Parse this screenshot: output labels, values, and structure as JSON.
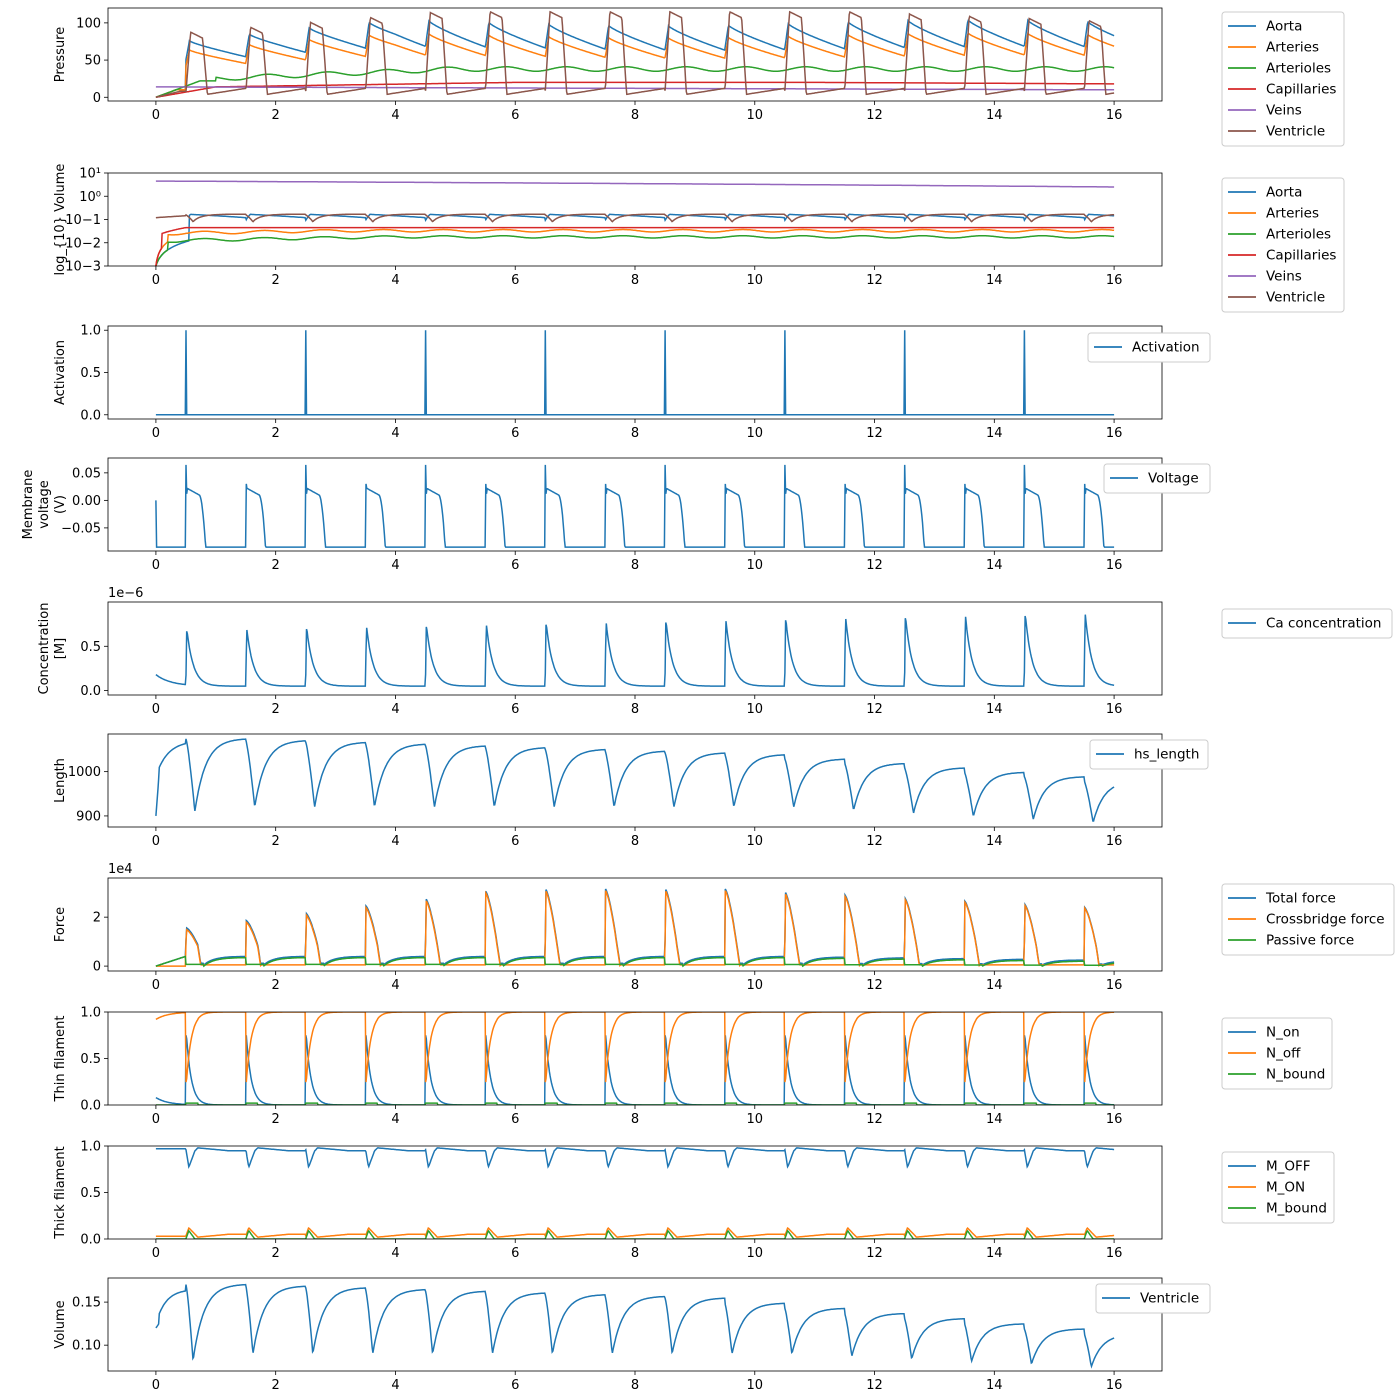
{
  "figure": {
    "panels_count": 10
  },
  "chart_data": [
    {
      "type": "line",
      "ylabel": "Pressure",
      "xlim": [
        -0.8,
        16.8
      ],
      "ylim": [
        -5,
        120
      ],
      "xticks": [
        0,
        2,
        4,
        6,
        8,
        10,
        12,
        14,
        16
      ],
      "yticks": [
        {
          "value": 0,
          "label": "0"
        },
        {
          "value": 50,
          "label": "50"
        },
        {
          "value": 100,
          "label": "100"
        }
      ],
      "legend": {
        "placement": "outside-right-top"
      },
      "series": [
        {
          "name": "Aorta",
          "color": "#1f77b4",
          "shape": "aorta_p",
          "base": 38,
          "amp": 62,
          "trend": 0.4
        },
        {
          "name": "Arteries",
          "color": "#ff7f0e",
          "shape": "aorta_p",
          "base": 33,
          "amp": 50,
          "trend": 0.3
        },
        {
          "name": "Arterioles",
          "color": "#2ca02c",
          "shape": "smooth_p",
          "base": 38,
          "amp": 6
        },
        {
          "name": "Capillaries",
          "color": "#d62728",
          "shape": "rise",
          "base": 20,
          "amp": 0
        },
        {
          "name": "Veins",
          "color": "#9467bd",
          "shape": "flat",
          "base": 12,
          "amp": 0
        },
        {
          "name": "Ventricle",
          "color": "#8c564b",
          "shape": "ventricle_p",
          "base": 8,
          "amp": 105
        }
      ]
    },
    {
      "type": "line",
      "ylabel": "log_{10} Volume",
      "scale": "log",
      "xlim": [
        -0.8,
        16.8
      ],
      "ylim": [
        0.001,
        10
      ],
      "xticks": [
        0,
        2,
        4,
        6,
        8,
        10,
        12,
        14,
        16
      ],
      "yticks": [
        {
          "value": 0.001,
          "label": "10−3"
        },
        {
          "value": 0.01,
          "label": "10−2"
        },
        {
          "value": 0.1,
          "label": "10−1"
        },
        {
          "value": 1,
          "label": "10⁰"
        },
        {
          "value": 10,
          "label": "10¹"
        }
      ],
      "legend": {
        "placement": "outside-right-top"
      },
      "series": [
        {
          "name": "Aorta",
          "color": "#1f77b4",
          "shape": "logvol_aorta"
        },
        {
          "name": "Arteries",
          "color": "#ff7f0e",
          "shape": "logvol_art"
        },
        {
          "name": "Arterioles",
          "color": "#2ca02c",
          "shape": "logvol_arterioles"
        },
        {
          "name": "Capillaries",
          "color": "#d62728",
          "shape": "logvol_cap"
        },
        {
          "name": "Veins",
          "color": "#9467bd",
          "shape": "logvol_veins"
        },
        {
          "name": "Ventricle",
          "color": "#8c564b",
          "shape": "logvol_vent"
        }
      ]
    },
    {
      "type": "line",
      "ylabel": "Activation",
      "xlim": [
        -0.8,
        16.8
      ],
      "ylim": [
        -0.05,
        1.05
      ],
      "xticks": [
        0,
        2,
        4,
        6,
        8,
        10,
        12,
        14,
        16
      ],
      "yticks": [
        {
          "value": 0,
          "label": "0.0"
        },
        {
          "value": 0.5,
          "label": "0.5"
        },
        {
          "value": 1,
          "label": "1.0"
        }
      ],
      "legend": {
        "placement": "upper-right-edge"
      },
      "series": [
        {
          "name": "Activation",
          "color": "#1f77b4",
          "shape": "spikes"
        }
      ]
    },
    {
      "type": "line",
      "ylabel": "Membrane voltage (V)",
      "ylabel_lines": [
        "Membrane",
        "voltage",
        "(V)"
      ],
      "xlim": [
        -0.8,
        16.8
      ],
      "ylim": [
        -0.092,
        0.077
      ],
      "xticks": [
        0,
        2,
        4,
        6,
        8,
        10,
        12,
        14,
        16
      ],
      "yticks": [
        {
          "value": -0.05,
          "label": "−0.05"
        },
        {
          "value": 0,
          "label": "0.00"
        },
        {
          "value": 0.05,
          "label": "0.05"
        }
      ],
      "legend": {
        "placement": "upper-right-edge"
      },
      "series": [
        {
          "name": "Voltage",
          "color": "#1f77b4",
          "shape": "voltage"
        }
      ]
    },
    {
      "type": "line",
      "ylabel": "Concentration [M]",
      "ylabel_lines": [
        "Concentration",
        "[M]"
      ],
      "offset_text": "1e−6",
      "xlim": [
        -0.8,
        16.8
      ],
      "ylim": [
        -0.05,
        1.0
      ],
      "xticks": [
        0,
        2,
        4,
        6,
        8,
        10,
        12,
        14,
        16
      ],
      "yticks": [
        {
          "value": 0,
          "label": "0.0"
        },
        {
          "value": 0.5,
          "label": "0.5"
        }
      ],
      "legend": {
        "placement": "outside-right-top"
      },
      "series": [
        {
          "name": "Ca concentration",
          "color": "#1f77b4",
          "shape": "calcium"
        }
      ]
    },
    {
      "type": "line",
      "ylabel": "Length",
      "xlim": [
        -0.8,
        16.8
      ],
      "ylim": [
        875,
        1085
      ],
      "xticks": [
        0,
        2,
        4,
        6,
        8,
        10,
        12,
        14,
        16
      ],
      "yticks": [
        {
          "value": 900,
          "label": "900"
        },
        {
          "value": 1000,
          "label": "1000"
        }
      ],
      "legend": {
        "placement": "upper-right-edge"
      },
      "series": [
        {
          "name": "hs_length",
          "color": "#1f77b4",
          "shape": "length"
        }
      ]
    },
    {
      "type": "line",
      "ylabel": "Force",
      "offset_text": "1e4",
      "xlim": [
        -0.8,
        16.8
      ],
      "ylim": [
        -0.2,
        3.6
      ],
      "xticks": [
        0,
        2,
        4,
        6,
        8,
        10,
        12,
        14,
        16
      ],
      "yticks": [
        {
          "value": 0,
          "label": "0"
        },
        {
          "value": 2,
          "label": "2"
        }
      ],
      "legend": {
        "placement": "outside-right-top"
      },
      "series": [
        {
          "name": "Total force",
          "color": "#1f77b4",
          "shape": "force_total"
        },
        {
          "name": "Crossbridge force",
          "color": "#ff7f0e",
          "shape": "force_cb"
        },
        {
          "name": "Passive force",
          "color": "#2ca02c",
          "shape": "force_pass"
        }
      ]
    },
    {
      "type": "line",
      "ylabel": "Thin filament",
      "xlim": [
        -0.8,
        16.8
      ],
      "ylim": [
        0,
        1.0
      ],
      "xticks": [
        0,
        2,
        4,
        6,
        8,
        10,
        12,
        14,
        16
      ],
      "yticks": [
        {
          "value": 0,
          "label": "0.0"
        },
        {
          "value": 0.5,
          "label": "0.5"
        },
        {
          "value": 1,
          "label": "1.0"
        }
      ],
      "legend": {
        "placement": "outside-right-top"
      },
      "series": [
        {
          "name": "N_on",
          "color": "#1f77b4",
          "shape": "non"
        },
        {
          "name": "N_off",
          "color": "#ff7f0e",
          "shape": "noff"
        },
        {
          "name": "N_bound",
          "color": "#2ca02c",
          "shape": "nbound"
        }
      ]
    },
    {
      "type": "line",
      "ylabel": "Thick filament",
      "xlim": [
        -0.8,
        16.8
      ],
      "ylim": [
        0,
        1.0
      ],
      "xticks": [
        0,
        2,
        4,
        6,
        8,
        10,
        12,
        14,
        16
      ],
      "yticks": [
        {
          "value": 0,
          "label": "0.0"
        },
        {
          "value": 0.5,
          "label": "0.5"
        },
        {
          "value": 1,
          "label": "1.0"
        }
      ],
      "legend": {
        "placement": "outside-right-top"
      },
      "series": [
        {
          "name": "M_OFF",
          "color": "#1f77b4",
          "shape": "moff"
        },
        {
          "name": "M_ON",
          "color": "#ff7f0e",
          "shape": "mon"
        },
        {
          "name": "M_bound",
          "color": "#2ca02c",
          "shape": "mbound"
        }
      ]
    },
    {
      "type": "line",
      "ylabel": "Volume",
      "xlim": [
        -0.8,
        16.8
      ],
      "ylim": [
        0.07,
        0.178
      ],
      "xticks": [
        0,
        2,
        4,
        6,
        8,
        10,
        12,
        14,
        16
      ],
      "yticks": [
        {
          "value": 0.1,
          "label": "0.10"
        },
        {
          "value": 0.15,
          "label": "0.15"
        }
      ],
      "legend": {
        "placement": "upper-right-edge"
      },
      "series": [
        {
          "name": "Ventricle",
          "color": "#1f77b4",
          "shape": "vent_vol"
        }
      ]
    }
  ]
}
